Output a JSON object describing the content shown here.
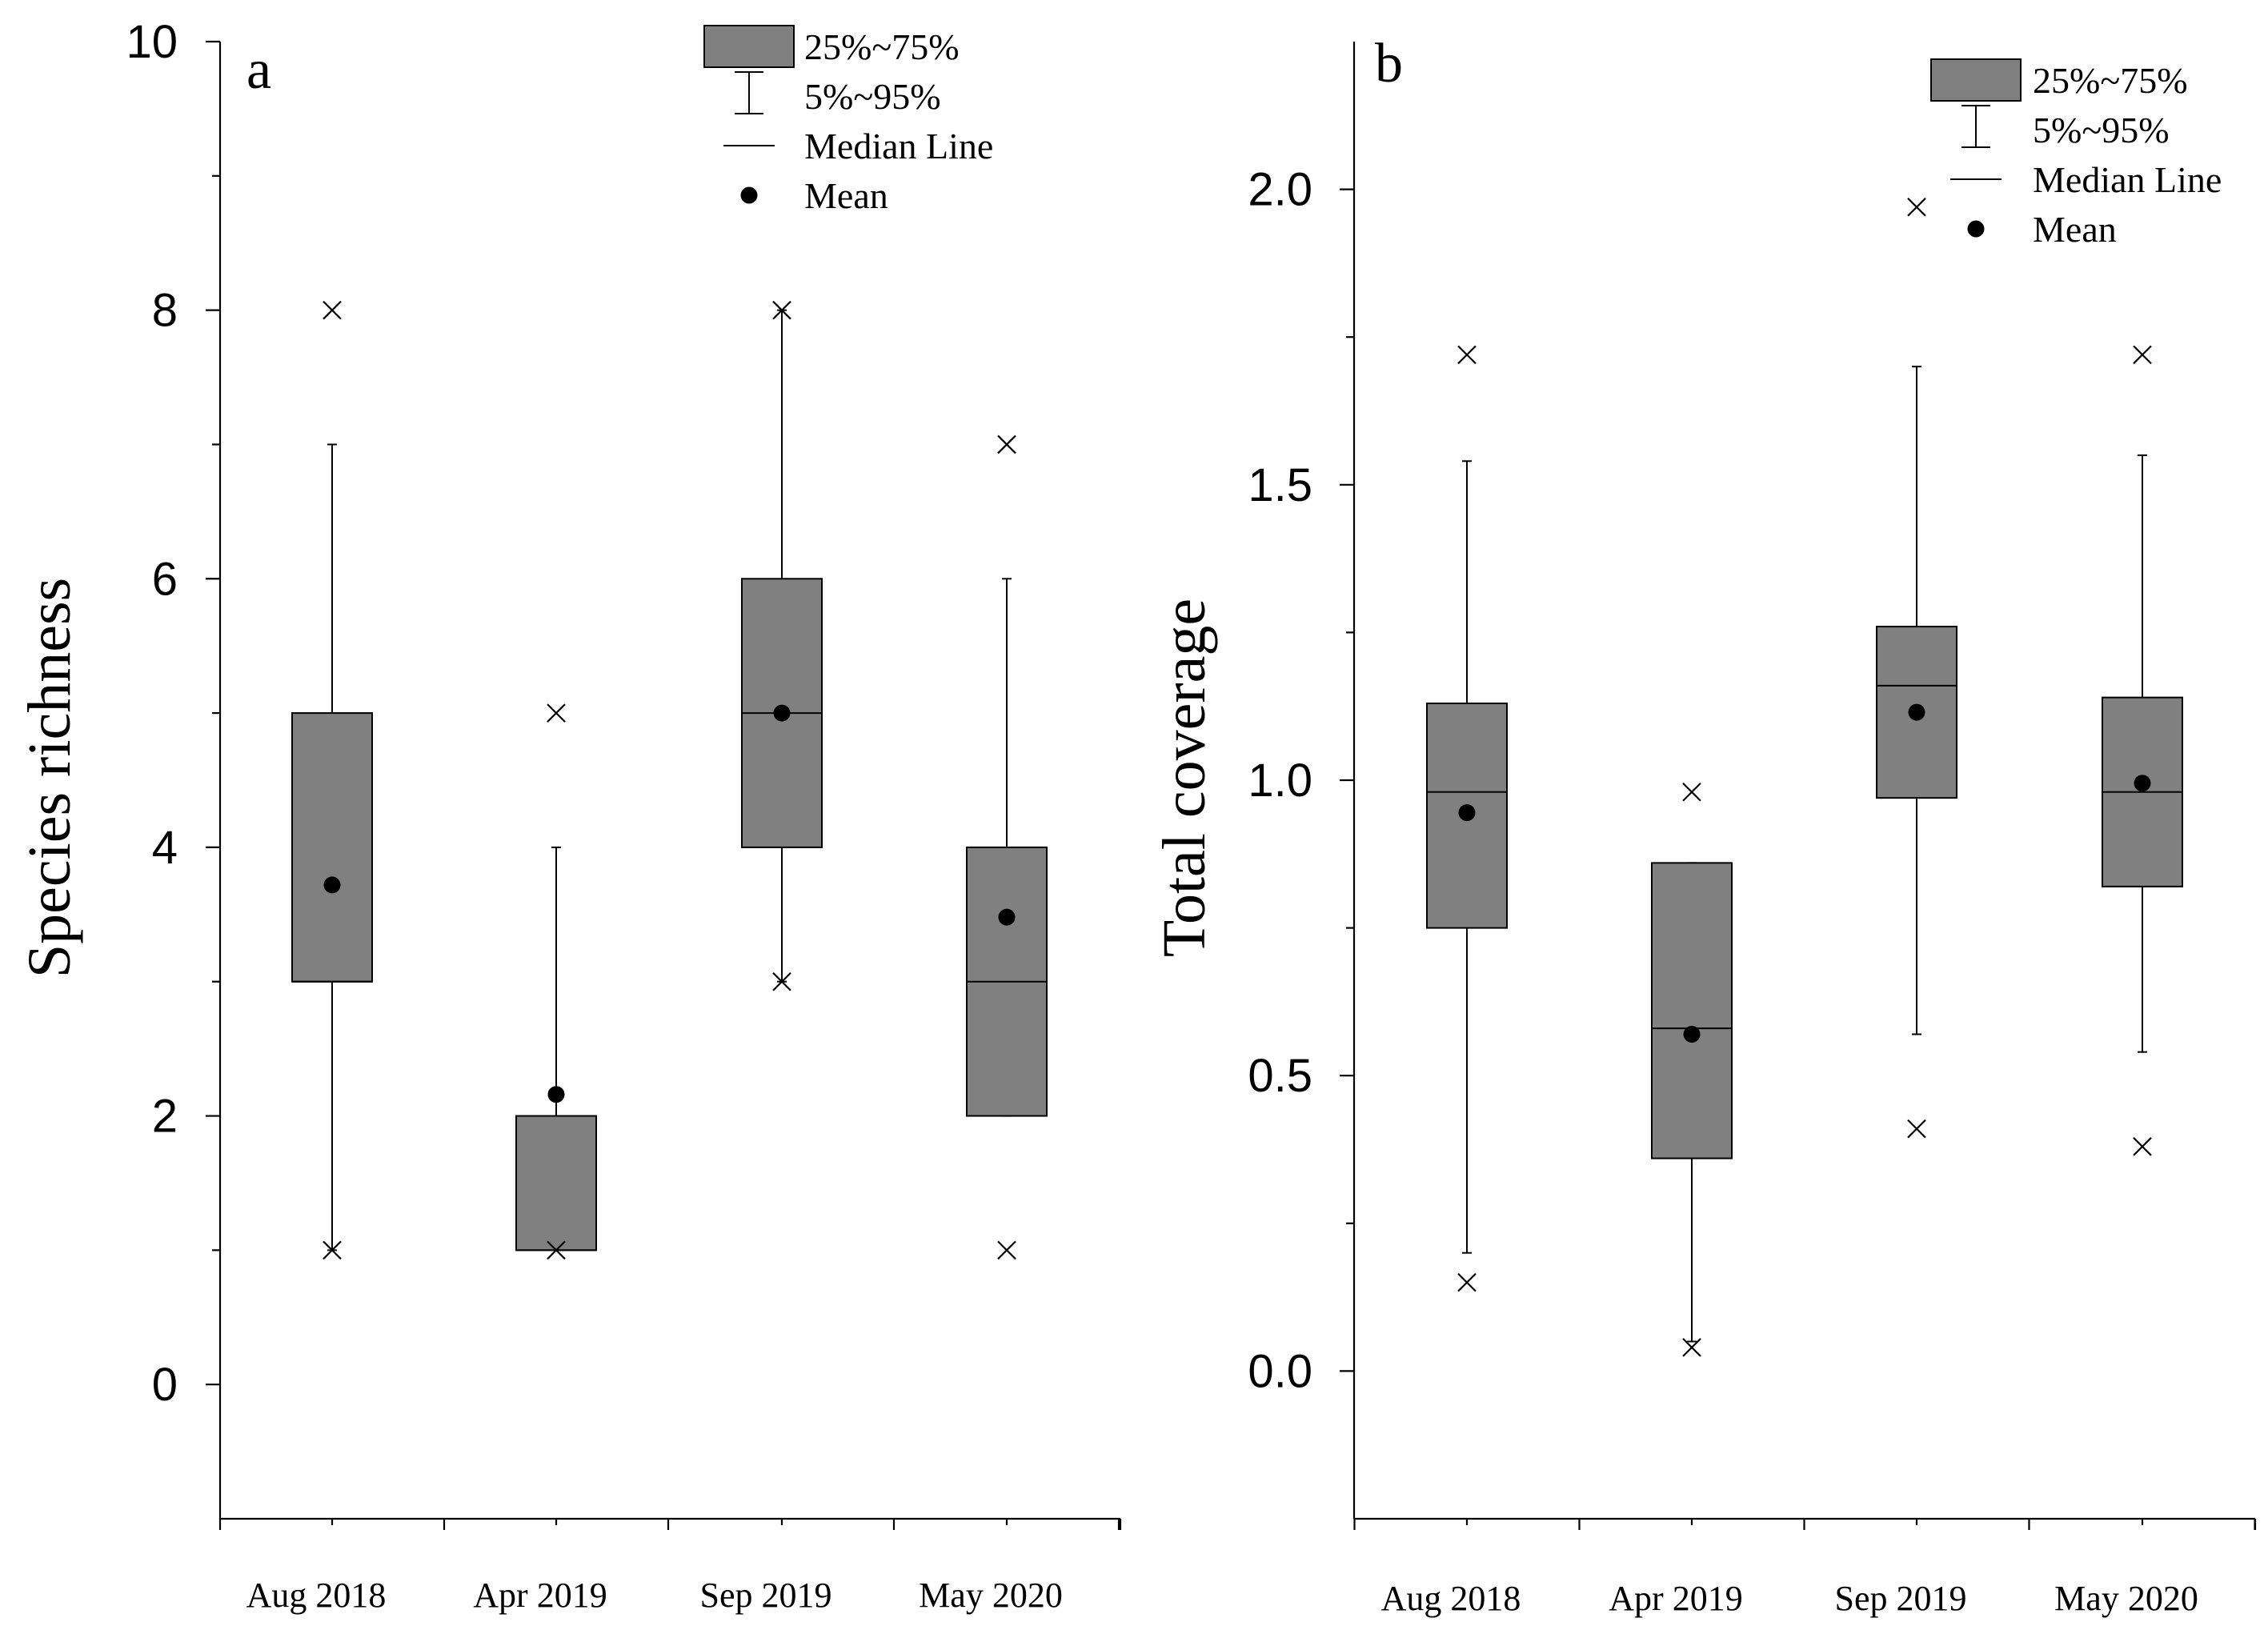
{
  "chart_data": [
    {
      "type": "box",
      "panel_label": "a",
      "ylabel": "Species richness",
      "ylim": [
        -1,
        10
      ],
      "yticks": [
        "0",
        "2",
        "4",
        "6",
        "8",
        "10"
      ],
      "categories": [
        "Aug 2018",
        "Apr 2019",
        "Sep 2019",
        "May 2020"
      ],
      "boxes": [
        {
          "q1": 3,
          "median": 3,
          "q3": 5,
          "whisker_low": 1,
          "whisker_high": 7,
          "mean": 3.72,
          "outliers": [
            1,
            8
          ]
        },
        {
          "q1": 1,
          "median": 1,
          "q3": 2,
          "whisker_low": 1,
          "whisker_high": 4,
          "mean": 2.16,
          "outliers": [
            1,
            5
          ]
        },
        {
          "q1": 4,
          "median": 5,
          "q3": 6,
          "whisker_low": 3,
          "whisker_high": 8,
          "mean": 5.0,
          "outliers": [
            3,
            8
          ]
        },
        {
          "q1": 2,
          "median": 3,
          "q3": 4,
          "whisker_low": 2,
          "whisker_high": 6,
          "mean": 3.48,
          "outliers": [
            1,
            7
          ]
        }
      ],
      "legend": {
        "box": "25%~75%",
        "whisker": "5%~95%",
        "median": "Median Line",
        "mean": "Mean"
      }
    },
    {
      "type": "box",
      "panel_label": "b",
      "ylabel": "Total coverage",
      "ylim": [
        -0.25,
        2.25
      ],
      "yticks": [
        "0.0",
        "0.5",
        "1.0",
        "1.5",
        "2.0"
      ],
      "categories": [
        "Aug 2018",
        "Apr 2019",
        "Sep 2019",
        "May 2020"
      ],
      "boxes": [
        {
          "q1": 0.75,
          "median": 0.98,
          "q3": 1.13,
          "whisker_low": 0.2,
          "whisker_high": 1.54,
          "mean": 0.945,
          "outliers": [
            0.15,
            1.72
          ]
        },
        {
          "q1": 0.36,
          "median": 0.58,
          "q3": 0.86,
          "whisker_low": 0.05,
          "whisker_high": 0.86,
          "mean": 0.57,
          "outliers": [
            0.04,
            0.98
          ]
        },
        {
          "q1": 0.97,
          "median": 1.16,
          "q3": 1.26,
          "whisker_low": 0.57,
          "whisker_high": 1.7,
          "mean": 1.115,
          "outliers": [
            0.41,
            1.97
          ]
        },
        {
          "q1": 0.82,
          "median": 0.98,
          "q3": 1.14,
          "whisker_low": 0.54,
          "whisker_high": 1.55,
          "mean": 0.995,
          "outliers": [
            0.38,
            1.72
          ]
        }
      ],
      "legend": {
        "box": "25%~75%",
        "whisker": "5%~95%",
        "median": "Median Line",
        "mean": "Mean"
      }
    }
  ]
}
